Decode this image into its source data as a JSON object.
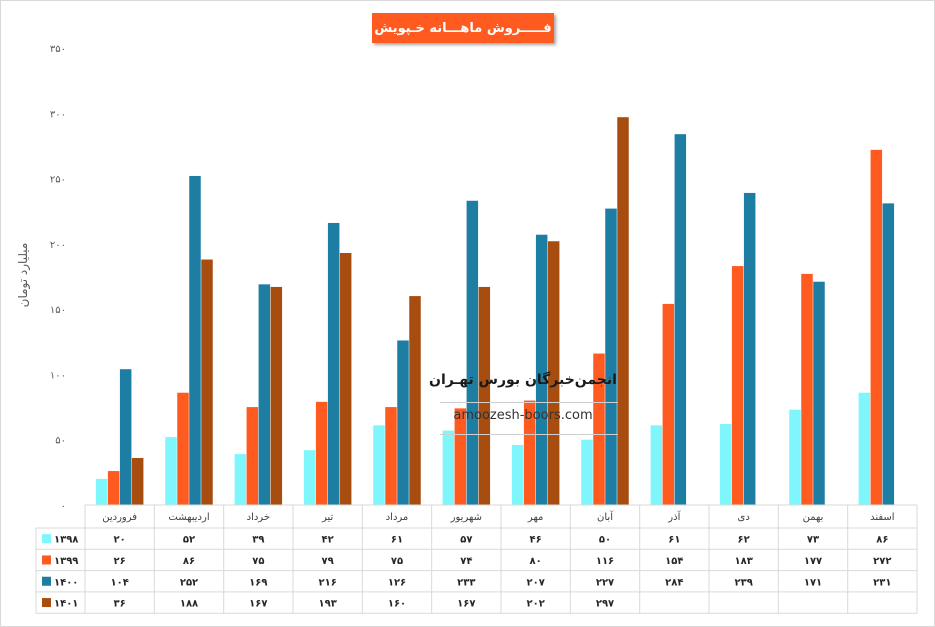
{
  "colors": {
    "s1398": "#7ff6fb",
    "s1399": "#ff5a1f",
    "s1400": "#1e7da3",
    "s1401": "#a84d10",
    "title_bg": "#ff5a1f",
    "grid": "#d9d9d9"
  },
  "chart_data": {
    "type": "bar",
    "title": "فـــــروش ماهـــانه خـپویش",
    "ylabel": "میلیارد تومان",
    "xlabel": "",
    "ylim": [
      0,
      350
    ],
    "yticks": [
      "۰",
      "۵۰",
      "۱۰۰",
      "۱۵۰",
      "۲۰۰",
      "۲۵۰",
      "۳۰۰",
      "۳۵۰"
    ],
    "ytick_values": [
      0,
      50,
      100,
      150,
      200,
      250,
      300,
      350
    ],
    "grid": false,
    "legend": "data-table-left",
    "categories": [
      "فروردین",
      "اردیبهشت",
      "خرداد",
      "تیر",
      "مرداد",
      "شهریور",
      "مهر",
      "آبان",
      "آذر",
      "دی",
      "بهمن",
      "اسفند"
    ],
    "series": [
      {
        "name": "۱۳۹۸",
        "values": [
          20,
          52,
          39,
          42,
          61,
          57,
          46,
          50,
          61,
          62,
          73,
          86
        ],
        "labels": [
          "۲۰",
          "۵۲",
          "۳۹",
          "۴۲",
          "۶۱",
          "۵۷",
          "۴۶",
          "۵۰",
          "۶۱",
          "۶۲",
          "۷۳",
          "۸۶"
        ]
      },
      {
        "name": "۱۳۹۹",
        "values": [
          26,
          86,
          75,
          79,
          75,
          74,
          80,
          116,
          154,
          183,
          177,
          272
        ],
        "labels": [
          "۲۶",
          "۸۶",
          "۷۵",
          "۷۹",
          "۷۵",
          "۷۴",
          "۸۰",
          "۱۱۶",
          "۱۵۴",
          "۱۸۳",
          "۱۷۷",
          "۲۷۲"
        ]
      },
      {
        "name": "۱۴۰۰",
        "values": [
          104,
          252,
          169,
          216,
          126,
          233,
          207,
          227,
          284,
          239,
          171,
          231
        ],
        "labels": [
          "۱۰۴",
          "۲۵۲",
          "۱۶۹",
          "۲۱۶",
          "۱۲۶",
          "۲۳۳",
          "۲۰۷",
          "۲۲۷",
          "۲۸۴",
          "۲۳۹",
          "۱۷۱",
          "۲۳۱"
        ]
      },
      {
        "name": "۱۴۰۱",
        "values": [
          36,
          188,
          167,
          193,
          160,
          167,
          202,
          297,
          null,
          null,
          null,
          null
        ],
        "labels": [
          "۳۶",
          "۱۸۸",
          "۱۶۷",
          "۱۹۳",
          "۱۶۰",
          "۱۶۷",
          "۲۰۲",
          "۲۹۷",
          "",
          "",
          "",
          ""
        ]
      }
    ]
  },
  "watermark": {
    "name": "انجمن‌خبرگان بورس تهـران",
    "url": "amoozesh-boors.com"
  }
}
